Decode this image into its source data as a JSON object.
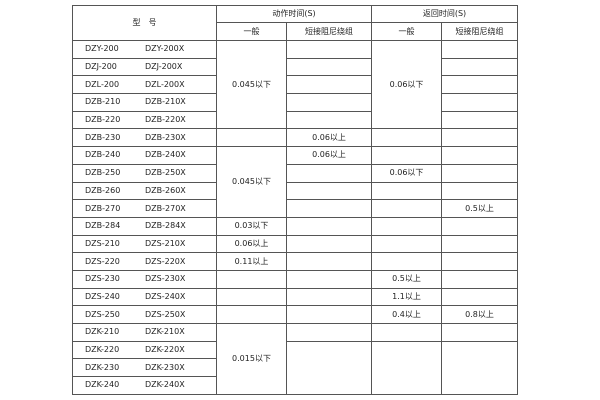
{
  "header": {
    "model": "型　号",
    "action_time": "动作时间(S)",
    "return_time": "返回时间(S)",
    "general": "一般",
    "short_winding": "短接阻尼绕组"
  },
  "rows": [
    {
      "a": "DZY-200",
      "b": "DZY-200X",
      "action_general": "0.045以下",
      "return_general": "0.06以下"
    },
    {
      "a": "DZJ-200",
      "b": "DZJ-200X"
    },
    {
      "a": "DZL-200",
      "b": "DZL-200X"
    },
    {
      "a": "DZB-210",
      "b": "DZB-210X"
    },
    {
      "a": "DZB-220",
      "b": "DZB-220X"
    },
    {
      "a": "DZB-230",
      "b": "DZB-230X",
      "action_short": "0.06以上"
    },
    {
      "a": "DZB-240",
      "b": "DZB-240X",
      "action_general": "0.045以下",
      "action_short": "0.06以上"
    },
    {
      "a": "DZB-250",
      "b": "DZB-250X",
      "return_general": "0.06以下"
    },
    {
      "a": "DZB-260",
      "b": "DZB-260X"
    },
    {
      "a": "DZB-270",
      "b": "DZB-270X",
      "return_short": "0.5以上"
    },
    {
      "a": "DZB-284",
      "b": "DZB-284X",
      "action_general": "0.03以下"
    },
    {
      "a": "DZS-210",
      "b": "DZS-210X",
      "action_general": "0.06以上"
    },
    {
      "a": "DZS-220",
      "b": "DZS-220X",
      "action_general": "0.11以上"
    },
    {
      "a": "DZS-230",
      "b": "DZS-230X",
      "return_general": "0.5以上"
    },
    {
      "a": "DZS-240",
      "b": "DZS-240X",
      "return_general": "1.1以上"
    },
    {
      "a": "DZS-250",
      "b": "DZS-250X",
      "return_general": "0.4以上",
      "return_short": "0.8以上"
    },
    {
      "a": "DZK-210",
      "b": "DZK-210X",
      "action_general": "0.015以下"
    },
    {
      "a": "DZK-220",
      "b": "DZK-220X"
    },
    {
      "a": "DZK-230",
      "b": "DZK-230X"
    },
    {
      "a": "DZK-240",
      "b": "DZK-240X"
    }
  ]
}
